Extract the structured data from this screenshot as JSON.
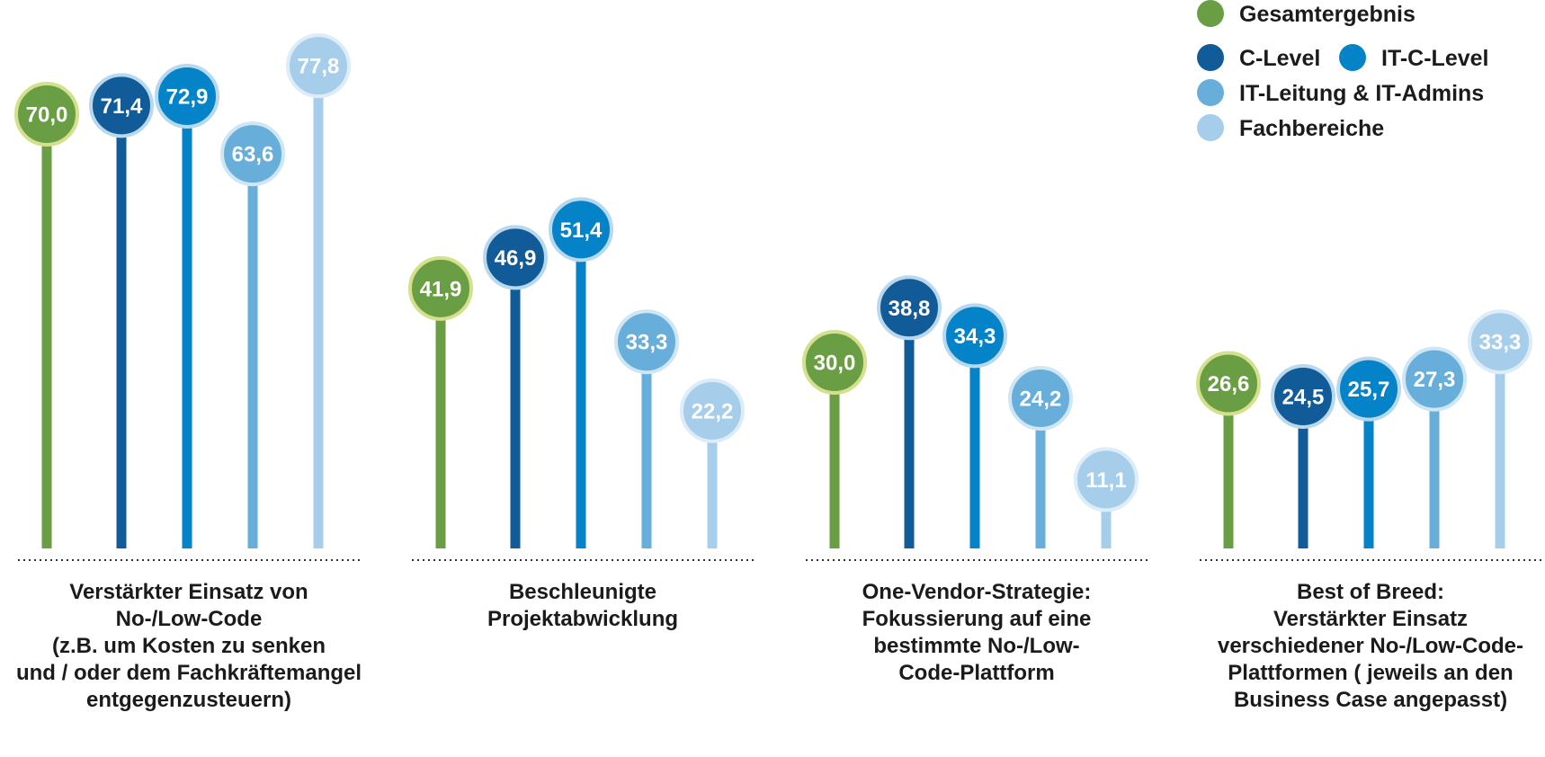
{
  "chart_data": {
    "type": "lollipop",
    "title": "",
    "xlabel": "",
    "ylabel": "",
    "ylim": [
      0,
      100
    ],
    "grid": false,
    "legend_position": "top-right",
    "categories": [
      [
        "Verstärkter Einsatz von",
        "No-/Low-Code",
        "(z.B. um Kosten zu senken",
        "und / oder dem Fachkräftemangel",
        "entgegenzusteuern)"
      ],
      [
        "Beschleunigte",
        "Projektabwicklung"
      ],
      [
        "One-Vendor-Strategie:",
        "Fokussierung auf eine",
        "bestimmte No-/Low-",
        "Code-Plattform"
      ],
      [
        "Best of Breed:",
        "Verstärkter Einsatz",
        "verschiedener No-/Low-Code-",
        "Plattformen ( jeweils an den",
        "Business Case angepasst)"
      ]
    ],
    "series": [
      {
        "name": "Gesamtergebnis",
        "color": "#6a9e44",
        "ring": "#d4e08c",
        "labels": [
          "70,0",
          "41,9",
          "30,0",
          "26,6"
        ],
        "values": [
          70.0,
          41.9,
          30.0,
          26.6
        ]
      },
      {
        "name": "C-Level",
        "color": "#125b99",
        "ring": "#b8d8ee",
        "labels": [
          "71,4",
          "46,9",
          "38,8",
          "24,5"
        ],
        "values": [
          71.4,
          46.9,
          38.8,
          24.5
        ]
      },
      {
        "name": "IT-C-Level",
        "color": "#0583c9",
        "ring": "#b8d8ee",
        "labels": [
          "72,9",
          "51,4",
          "34,3",
          "25,7"
        ],
        "values": [
          72.9,
          51.4,
          34.3,
          25.7
        ]
      },
      {
        "name": "IT-Leitung & IT-Admins",
        "color": "#67aedb",
        "ring": "#cfe6f5",
        "labels": [
          "63,6",
          "33,3",
          "24,2",
          "27,3"
        ],
        "values": [
          63.6,
          33.3,
          24.2,
          27.3
        ]
      },
      {
        "name": "Fachbereiche",
        "color": "#a6cdea",
        "ring": "#dcecf8",
        "labels": [
          "77,8",
          "22,2",
          "11,1",
          "33,3"
        ],
        "values": [
          77.8,
          22.2,
          11.1,
          33.3
        ]
      }
    ]
  }
}
